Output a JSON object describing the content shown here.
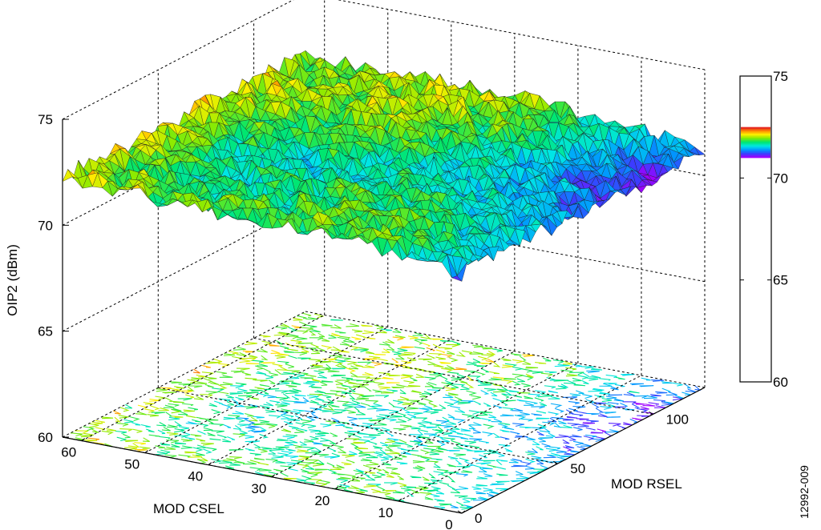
{
  "figure_id": "12992-009",
  "chart_data": {
    "type": "surface3d",
    "title": "",
    "zlabel": "OIP2 (dBm)",
    "xlabel": "MOD CSEL",
    "ylabel": "MOD RSEL",
    "zlim": [
      60,
      75
    ],
    "xlim": [
      0,
      63
    ],
    "ylim": [
      0,
      127
    ],
    "z_ticks": [
      "60",
      "65",
      "70",
      "75"
    ],
    "x_ticks": [
      "0",
      "10",
      "20",
      "30",
      "40",
      "50",
      "60"
    ],
    "y_ticks": [
      "0",
      "50",
      "100"
    ],
    "colormap": "hsv",
    "projected_contour": true,
    "grid": true,
    "colorbar": {
      "ticks": [
        "60",
        "65",
        "70",
        "75"
      ],
      "range": [
        60,
        75
      ],
      "colored_band": [
        71.0,
        72.5
      ]
    },
    "surface_trend": {
      "z_at_csel_60_rsel_0": 72.3,
      "z_at_csel_0_rsel_0": 71.3,
      "z_at_csel_60_rsel_127": 72.2,
      "z_at_csel_0_rsel_127": 71.4,
      "noise_amplitude": 0.45
    }
  }
}
